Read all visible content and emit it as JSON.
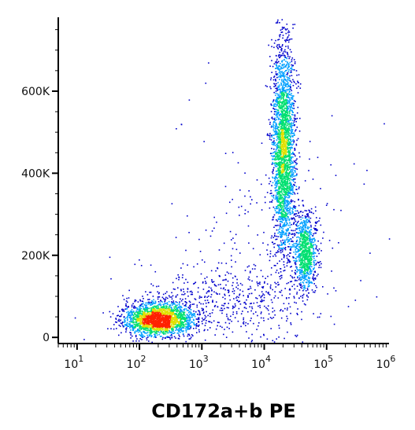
{
  "chart_data": {
    "type": "scatter",
    "style": "flow-cytometry density dot plot",
    "title": "",
    "xlabel": "CD172a+b PE",
    "ylabel": "",
    "x_scale": "log",
    "xlim": [
      5,
      1000000
    ],
    "ylim": [
      -15000,
      780000
    ],
    "x_ticks": [
      {
        "value": 10,
        "base": "10",
        "exp": "1"
      },
      {
        "value": 100,
        "base": "10",
        "exp": "2"
      },
      {
        "value": 1000,
        "base": "10",
        "exp": "3"
      },
      {
        "value": 10000,
        "base": "10",
        "exp": "4"
      },
      {
        "value": 100000,
        "base": "10",
        "exp": "5"
      },
      {
        "value": 1000000,
        "base": "10",
        "exp": "6"
      }
    ],
    "y_ticks": [
      {
        "value": 0,
        "label": "0"
      },
      {
        "value": 200000,
        "label": "200K"
      },
      {
        "value": 400000,
        "label": "400K"
      },
      {
        "value": 600000,
        "label": "600K"
      }
    ],
    "grid": false,
    "legend": "none",
    "density_colors": [
      "#0000cc",
      "#00a0ff",
      "#00e070",
      "#e0e000",
      "#ff2000"
    ],
    "populations": [
      {
        "x_center": 200,
        "x_spread_decades": 0.28,
        "y_center": 45000,
        "y_spread": 20000,
        "count": 2200
      },
      {
        "x_center": 20000,
        "x_spread_decades": 0.09,
        "y_center": 460000,
        "y_spread": 130000,
        "count": 2600
      },
      {
        "x_center": 45000,
        "x_spread_decades": 0.09,
        "y_center": 210000,
        "y_spread": 45000,
        "count": 900
      },
      {
        "x_center": 2000,
        "x_spread_decades": 0.7,
        "y_center": 90000,
        "y_spread": 45000,
        "count": 500
      },
      {
        "x_center": 10000,
        "x_spread_decades": 0.6,
        "y_center": 250000,
        "y_spread": 180000,
        "count": 250
      }
    ]
  }
}
